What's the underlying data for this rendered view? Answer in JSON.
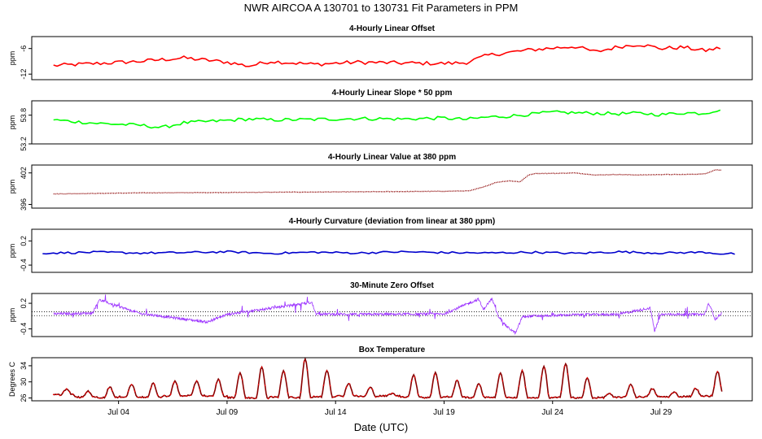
{
  "title": "NWR   AIRCOA A   130701 to 130731   Fit Parameters in PPM",
  "xlabel": "Date (UTC)",
  "x_ticks": [
    {
      "label": "Jul 04",
      "day": 4
    },
    {
      "label": "Jul 09",
      "day": 9
    },
    {
      "label": "Jul 14",
      "day": 14
    },
    {
      "label": "Jul 19",
      "day": 19
    },
    {
      "label": "Jul 24",
      "day": 24
    },
    {
      "label": "Jul 29",
      "day": 29
    }
  ],
  "chart_data": [
    {
      "type": "line",
      "title": "4-Hourly Linear Offset",
      "ylabel": "ppm",
      "color": "#ff0000",
      "style": "line",
      "ylim": [
        -13.3,
        -3.2
      ],
      "yticks": [
        "-6",
        "-12"
      ],
      "ytick_values": [
        -6,
        -12
      ],
      "x_range": [
        1.0,
        31.8
      ],
      "x": [
        1,
        3,
        5,
        7,
        9,
        10,
        11,
        13,
        15,
        17,
        19,
        20,
        21,
        22,
        23,
        24,
        25,
        26,
        27,
        28,
        29,
        30,
        31,
        31.8
      ],
      "y": [
        -10.0,
        -9.5,
        -9.0,
        -8.2,
        -9.2,
        -10.1,
        -9.0,
        -9.7,
        -9.2,
        -9.4,
        -9.5,
        -9.3,
        -7.6,
        -6.9,
        -6.3,
        -5.9,
        -5.5,
        -6.8,
        -5.6,
        -5.0,
        -6.0,
        -5.7,
        -6.5,
        -5.8
      ]
    },
    {
      "type": "line",
      "title": "4-Hourly Linear Slope * 50 ppm",
      "ylabel": "ppm",
      "color": "#00ff00",
      "style": "line",
      "ylim": [
        53.2,
        54.1
      ],
      "yticks": [
        "53.8",
        "53.2"
      ],
      "ytick_values": [
        53.8,
        53.2
      ],
      "x_range": [
        1.0,
        31.8
      ],
      "x": [
        1,
        3,
        5,
        6,
        7,
        9,
        10,
        11,
        13,
        15,
        17,
        19,
        20,
        21,
        22,
        23,
        24,
        25,
        26,
        27,
        28,
        29,
        30,
        31,
        31.8
      ],
      "y": [
        53.7,
        53.63,
        53.59,
        53.54,
        53.64,
        53.69,
        53.72,
        53.7,
        53.71,
        53.73,
        53.72,
        53.74,
        53.71,
        53.76,
        53.78,
        53.82,
        53.86,
        53.85,
        53.84,
        53.83,
        53.84,
        53.81,
        53.85,
        53.84,
        53.93
      ]
    },
    {
      "type": "line",
      "title": "4-Hourly Linear Value at 380 ppm",
      "ylabel": "ppm",
      "color": "#8b0000",
      "style": "dotted",
      "ylim": [
        395.3,
        403.5
      ],
      "yticks": [
        "402",
        "396"
      ],
      "ytick_values": [
        402,
        396
      ],
      "x_range": [
        1.0,
        31.8
      ],
      "x": [
        1,
        5,
        10,
        15,
        19,
        20.2,
        20.7,
        21,
        21.4,
        22,
        22.5,
        22.9,
        23.2,
        24,
        25,
        26,
        27,
        28,
        29,
        30,
        31,
        31.5,
        31.8
      ],
      "y": [
        398.0,
        398.2,
        398.3,
        398.4,
        398.5,
        398.6,
        399.2,
        399.6,
        400.2,
        400.5,
        400.3,
        401.6,
        401.9,
        401.9,
        402.0,
        401.6,
        401.7,
        401.6,
        401.7,
        401.7,
        401.8,
        402.6,
        402.5
      ]
    },
    {
      "type": "line",
      "title": "4-Hourly Curvature (deviation from linear at 380 ppm)",
      "ylabel": "ppm",
      "color": "#0000cd",
      "style": "line",
      "ylim": [
        -0.58,
        0.49
      ],
      "yticks": [
        "0.2",
        "-0.4"
      ],
      "ytick_values": [
        0.2,
        -0.4
      ],
      "x_range": [
        0.5,
        32.4
      ],
      "x": [
        1,
        3,
        5,
        7,
        9,
        11,
        13,
        15,
        17,
        19,
        21,
        23,
        25,
        27,
        29,
        31,
        31.8
      ],
      "y": [
        -0.1,
        -0.08,
        -0.1,
        -0.09,
        -0.07,
        -0.11,
        -0.08,
        -0.1,
        -0.07,
        -0.09,
        -0.1,
        -0.08,
        -0.11,
        -0.07,
        -0.1,
        -0.08,
        -0.12
      ]
    },
    {
      "type": "line",
      "title": "30-Minute Zero Offset",
      "ylabel": "ppm",
      "color": "#9b30ff",
      "style": "line",
      "ylim": [
        -0.58,
        0.43
      ],
      "yticks": [
        "0.2",
        "-0.4"
      ],
      "ytick_values": [
        0.2,
        -0.4
      ],
      "x_range": [
        1.0,
        31.8
      ],
      "hlines": [
        0.0,
        -0.09
      ],
      "x": [
        1,
        2.8,
        3.1,
        5,
        8.1,
        9,
        12.9,
        13.1,
        15,
        19,
        20.6,
        20.8,
        21.2,
        21.5,
        21.9,
        22.3,
        22.6,
        23,
        25,
        27,
        28.5,
        28.7,
        29,
        31,
        31.2,
        31.5,
        31.8
      ],
      "y": [
        -0.05,
        -0.03,
        0.28,
        -0.04,
        -0.24,
        -0.06,
        0.22,
        -0.05,
        -0.06,
        -0.05,
        0.3,
        0.05,
        0.31,
        -0.1,
        -0.35,
        -0.5,
        -0.12,
        -0.1,
        -0.07,
        -0.06,
        0.09,
        -0.45,
        -0.06,
        -0.06,
        0.2,
        -0.18,
        -0.02
      ]
    },
    {
      "type": "line",
      "title": "Box Temperature",
      "ylabel": "Degrees C",
      "color": "#8b0000",
      "style": "line",
      "point_color": "#ff0000",
      "ylim": [
        25.3,
        36.0
      ],
      "yticks": [
        "34",
        "30",
        "26"
      ],
      "ytick_values": [
        34,
        30,
        26
      ],
      "x_range": [
        1.0,
        31.8
      ],
      "daily_peak_days": [
        1.6,
        2.6,
        3.6,
        4.6,
        5.6,
        6.6,
        7.6,
        8.6,
        9.6,
        10.6,
        11.6,
        12.6,
        13.6,
        14.6,
        15.6,
        16.6,
        17.6,
        18.6,
        19.6,
        20.6,
        21.6,
        22.6,
        23.6,
        24.6,
        25.6,
        26.6,
        27.6,
        28.6,
        29.6,
        30.6,
        31.6
      ],
      "daily_peaks": [
        28.2,
        27.7,
        28.8,
        29.4,
        29.6,
        30.1,
        30.2,
        30.6,
        32.2,
        33.6,
        32.8,
        35.7,
        32.9,
        29.6,
        28.6,
        27.1,
        31.6,
        32.3,
        30.3,
        29.6,
        32.1,
        32.7,
        33.8,
        34.6,
        30.9,
        27.1,
        29.4,
        28.3,
        27.4,
        28.4,
        32.6
      ],
      "daily_minima": [
        26.8,
        26.2,
        26.1,
        26.3,
        26.2,
        26.5,
        26.6,
        26.4,
        26.1,
        26.0,
        26.2,
        26.1,
        26.3,
        26.5,
        26.4,
        26.5,
        26.3,
        26.1,
        26.3,
        26.1,
        26.2,
        26.1,
        26.0,
        26.1,
        26.0,
        26.1,
        26.2,
        26.3,
        26.3,
        26.4,
        26.5
      ]
    }
  ]
}
